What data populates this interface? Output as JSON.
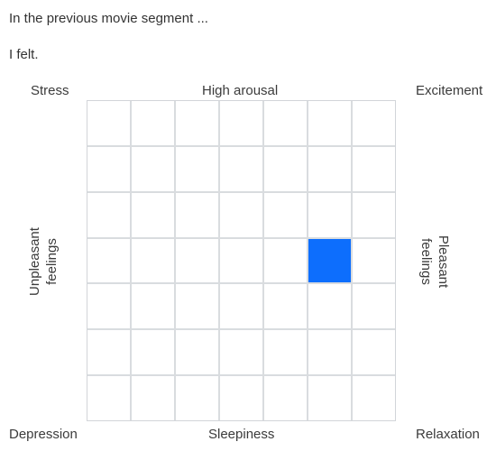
{
  "prompt": "In the previous movie segment ...",
  "subprompt": "I felt.",
  "grid": {
    "rows": 7,
    "cols": 7,
    "selected": {
      "row": 4,
      "col": 6
    },
    "selected_color": "#0d6efd"
  },
  "labels": {
    "top_left": "Stress",
    "top": "High arousal",
    "top_right": "Excitement",
    "bottom_left": "Depression",
    "bottom": "Sleepiness",
    "bottom_right": "Relaxation",
    "left_line1": "Unpleasant",
    "left_line2": "feelings",
    "right_line1": "Pleasant",
    "right_line2": "feelings"
  }
}
